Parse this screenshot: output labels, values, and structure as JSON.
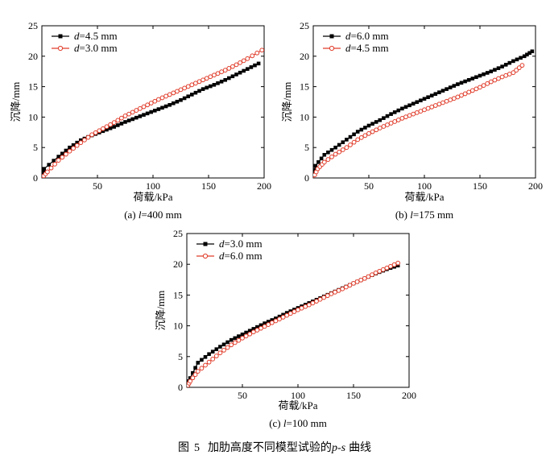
{
  "figure_caption": {
    "prefix": "图",
    "number": "5",
    "text": "加肋高度不同模型试验的",
    "math": "p-s",
    "suffix": "曲线"
  },
  "chart_data": [
    {
      "type": "line",
      "caption": "(a) l=400 mm",
      "xlabel": "荷载/kPa",
      "ylabel": "沉降/mm",
      "xlim": [
        0,
        200
      ],
      "ylim": [
        0,
        25
      ],
      "xticks": [
        50,
        100,
        150,
        200
      ],
      "yticks": [
        0,
        5,
        10,
        15,
        20,
        25
      ],
      "legend_position": "top-left",
      "series": [
        {
          "name": "d=4.5 mm",
          "marker": "filled-square",
          "color": "#000000",
          "x": [
            0,
            2,
            15,
            25,
            35,
            45,
            55,
            65,
            75,
            85,
            95,
            105,
            115,
            125,
            135,
            145,
            155,
            165,
            175,
            185,
            195
          ],
          "y": [
            0,
            1.5,
            3.5,
            5.0,
            6.2,
            7.0,
            7.7,
            8.4,
            9.2,
            9.9,
            10.6,
            11.3,
            12.0,
            12.8,
            13.7,
            14.6,
            15.3,
            16.1,
            17.0,
            17.9,
            18.8
          ]
        },
        {
          "name": "d=3.0 mm",
          "marker": "open-circle",
          "color": "#e03c2a",
          "x": [
            0,
            5,
            15,
            25,
            35,
            45,
            55,
            65,
            75,
            85,
            95,
            105,
            115,
            125,
            135,
            145,
            155,
            165,
            175,
            185,
            198
          ],
          "y": [
            0,
            1.0,
            2.9,
            4.4,
            5.8,
            7.1,
            8.1,
            9.1,
            10.2,
            11.1,
            12.0,
            12.9,
            13.7,
            14.5,
            15.3,
            16.1,
            16.9,
            17.7,
            18.6,
            19.6,
            21.0
          ]
        }
      ]
    },
    {
      "type": "line",
      "caption": "(b) l=175 mm",
      "xlabel": "荷载/kPa",
      "ylabel": "沉降/mm",
      "xlim": [
        0,
        200
      ],
      "ylim": [
        0,
        25
      ],
      "xticks": [
        50,
        100,
        150,
        200
      ],
      "yticks": [
        0,
        5,
        10,
        15,
        20,
        25
      ],
      "legend_position": "top-left",
      "series": [
        {
          "name": "d=6.0 mm",
          "marker": "filled-square",
          "color": "#000000",
          "x": [
            0,
            2,
            10,
            20,
            30,
            40,
            50,
            60,
            70,
            80,
            90,
            100,
            110,
            120,
            130,
            140,
            150,
            160,
            170,
            180,
            190,
            197
          ],
          "y": [
            0,
            2.0,
            3.8,
            5.0,
            6.3,
            7.6,
            8.6,
            9.5,
            10.5,
            11.4,
            12.2,
            13.0,
            13.8,
            14.6,
            15.4,
            16.1,
            16.8,
            17.5,
            18.3,
            19.2,
            20.0,
            20.8
          ]
        },
        {
          "name": "d=4.5 mm",
          "marker": "open-circle",
          "color": "#e03c2a",
          "x": [
            0,
            4,
            10,
            20,
            30,
            40,
            50,
            60,
            70,
            80,
            90,
            100,
            110,
            120,
            130,
            140,
            150,
            160,
            170,
            180,
            188
          ],
          "y": [
            0,
            1.5,
            2.6,
            3.9,
            5.0,
            6.3,
            7.3,
            8.2,
            9.0,
            9.8,
            10.5,
            11.2,
            11.9,
            12.6,
            13.3,
            14.1,
            14.9,
            15.8,
            16.6,
            17.3,
            18.5
          ]
        }
      ]
    },
    {
      "type": "line",
      "caption": "(c) l=100 mm",
      "xlabel": "荷载/kPa",
      "ylabel": "沉降/mm",
      "xlim": [
        0,
        200
      ],
      "ylim": [
        0,
        25
      ],
      "xticks": [
        50,
        100,
        150,
        200
      ],
      "yticks": [
        0,
        5,
        10,
        15,
        20,
        25
      ],
      "legend_position": "top-left",
      "series": [
        {
          "name": "d=3.0 mm",
          "marker": "filled-square",
          "color": "#000000",
          "x": [
            0,
            3,
            10,
            20,
            30,
            40,
            50,
            60,
            70,
            80,
            90,
            100,
            110,
            120,
            130,
            140,
            150,
            160,
            170,
            180,
            190
          ],
          "y": [
            0,
            1.5,
            4.0,
            5.4,
            6.6,
            7.7,
            8.6,
            9.5,
            10.4,
            11.2,
            12.1,
            12.9,
            13.7,
            14.5,
            15.3,
            16.1,
            16.9,
            17.7,
            18.5,
            19.2,
            19.8
          ]
        },
        {
          "name": "d=6.0 mm",
          "marker": "open-circle",
          "color": "#e03c2a",
          "x": [
            0,
            3,
            10,
            20,
            30,
            40,
            50,
            60,
            70,
            80,
            90,
            100,
            110,
            120,
            130,
            140,
            150,
            160,
            170,
            180,
            190
          ],
          "y": [
            0,
            1.0,
            2.6,
            4.1,
            5.6,
            6.9,
            8.0,
            9.0,
            9.9,
            10.8,
            11.7,
            12.6,
            13.4,
            14.3,
            15.2,
            16.0,
            16.9,
            17.7,
            18.6,
            19.4,
            20.2
          ]
        }
      ]
    }
  ]
}
